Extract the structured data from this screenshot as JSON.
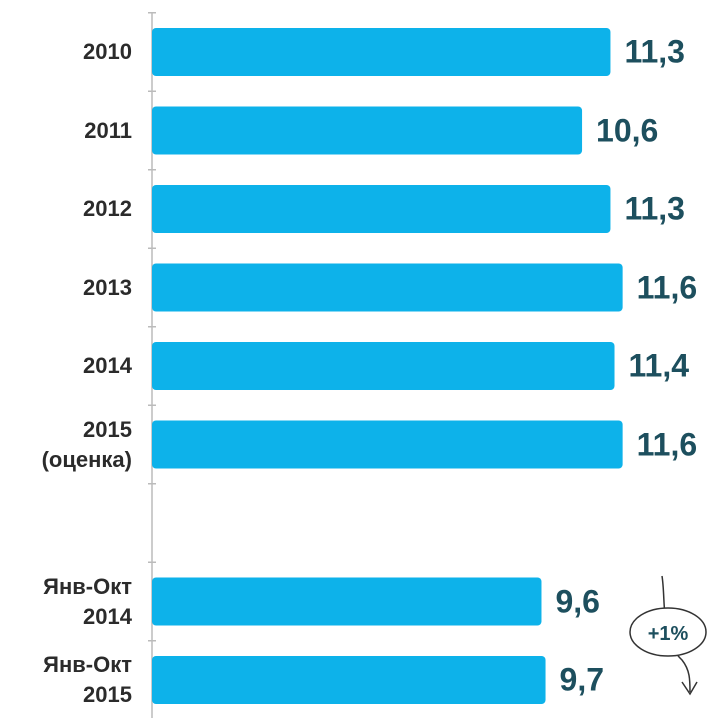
{
  "chart_data": {
    "type": "bar",
    "orientation": "horizontal",
    "categories": [
      "2010",
      "2011",
      "2012",
      "2013",
      "2014",
      "2015\n(оценка)",
      null,
      "Янв-Окт\n2014",
      "Янв-Окт\n2015"
    ],
    "values": [
      11.3,
      10.6,
      11.3,
      11.6,
      11.4,
      11.6,
      null,
      9.6,
      9.7
    ],
    "value_labels": [
      "11,3",
      "10,6",
      "11,3",
      "11,6",
      "11,4",
      "11,6",
      null,
      "9,6",
      "9,7"
    ],
    "color": "#0db2ea",
    "xlim": [
      0,
      14
    ],
    "annotation": "+1%"
  }
}
